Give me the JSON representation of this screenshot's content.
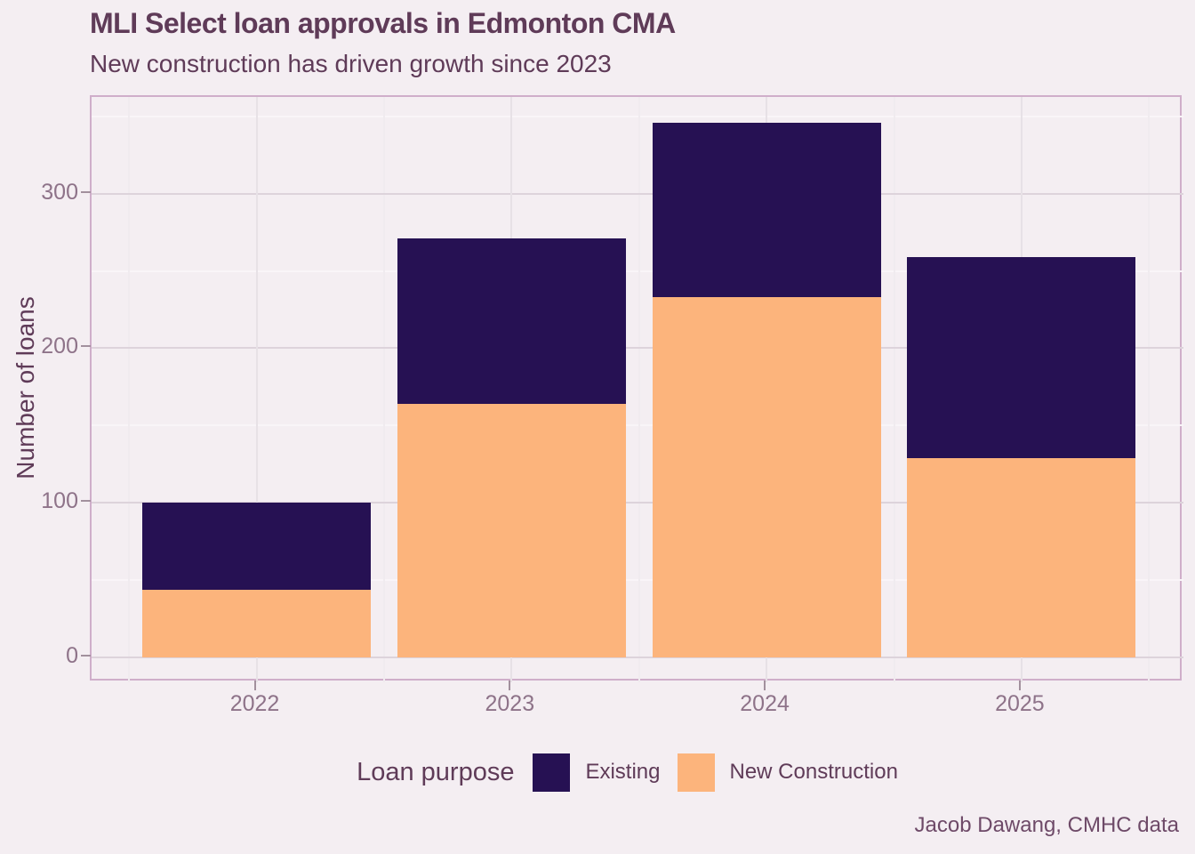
{
  "page": {
    "background_color": "#f4eef2"
  },
  "chart_data": {
    "type": "bar",
    "stacked": true,
    "title": "MLI Select loan approvals in Edmonton CMA",
    "subtitle": "New construction has driven growth since 2023",
    "caption": "Jacob Dawang, CMHC data",
    "xlabel": "",
    "ylabel": "Number of loans",
    "categories": [
      "2022",
      "2023",
      "2024",
      "2025"
    ],
    "series": [
      {
        "name": "Existing",
        "color": "#261153",
        "values": [
          56,
          107,
          113,
          130
        ]
      },
      {
        "name": "New Construction",
        "color": "#fcb47c",
        "values": [
          44,
          164,
          233,
          129
        ]
      }
    ],
    "stack_bottom_series": "New Construction",
    "totals": [
      100,
      271,
      346,
      259
    ],
    "yticks": [
      0,
      100,
      200,
      300
    ],
    "yminor_ticks": [
      50,
      150,
      250,
      350
    ],
    "ylim": [
      0,
      362
    ],
    "grid": true,
    "legend": {
      "title": "Loan purpose",
      "position": "bottom",
      "items": [
        "Existing",
        "New Construction"
      ]
    },
    "colors": {
      "background": "#f4eef2",
      "title_text": "#5f3b58",
      "axis_text": "#8e7389",
      "caption_text": "#6e4a68",
      "panel_border": "#cfaeca",
      "grid_major": "#ddd3db",
      "grid_minor": "#f9f5f8",
      "existing_bar": "#261153",
      "new_construction_bar": "#fcb47c"
    }
  }
}
